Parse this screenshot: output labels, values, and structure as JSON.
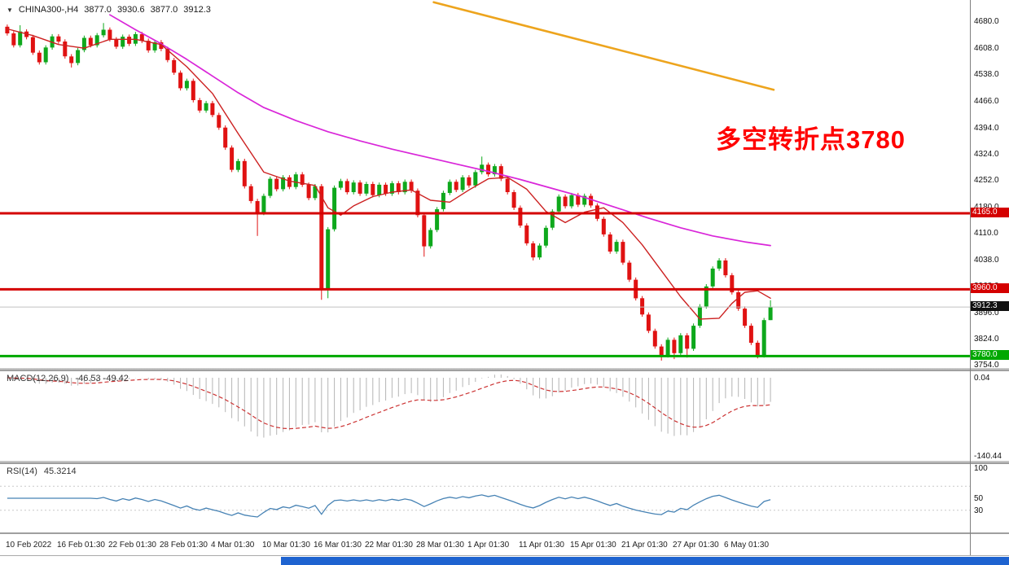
{
  "symbol_readout": {
    "dropdown_icon": "▼",
    "symbol_tf": "CHINA300-,H4",
    "open": "3877.0",
    "high": "3930.6",
    "low": "3877.0",
    "close": "3912.3"
  },
  "annotation": {
    "text": "多空转折点3780",
    "color": "#ff0000"
  },
  "time_axis": {
    "tick_indices": [
      0,
      8,
      16,
      24,
      32,
      40,
      48,
      56,
      64,
      72,
      80,
      88,
      96,
      104,
      112
    ],
    "labels": [
      "10 Feb 2022",
      "16 Feb 01:30",
      "22 Feb 01:30",
      "28 Feb 01:30",
      "4 Mar 01:30",
      "10 Mar 01:30",
      "16 Mar 01:30",
      "22 Mar 01:30",
      "28 Mar 01:30",
      "1 Apr 01:30",
      "11 Apr 01:30",
      "15 Apr 01:30",
      "21 Apr 01:30",
      "27 Apr 01:30",
      "6 May 01:30"
    ]
  },
  "chart_data": {
    "type": "candlestick",
    "symbol": "CHINA300-",
    "timeframe": "H4",
    "bull_color": "#0ea81c",
    "bear_color": "#e01212",
    "price_axis": {
      "view_max": 4740,
      "view_min": 3748,
      "ticks": [
        4680.0,
        4608.0,
        4538.0,
        4466.0,
        4394.0,
        4324.0,
        4252.0,
        4180.0,
        4110.0,
        4038.0,
        3968.0,
        3896.0,
        3824.0,
        3754.0
      ]
    },
    "hlines": [
      {
        "price": 4165.0,
        "color": "#d40000",
        "width": 3,
        "label": "4165.0"
      },
      {
        "price": 3960.0,
        "color": "#d40000",
        "width": 3,
        "label": "3960.0"
      },
      {
        "price": 3780.0,
        "color": "#00a800",
        "width": 3,
        "label": "3780.0"
      },
      {
        "price": 3912.3,
        "color": "#c0c0c0",
        "width": 1,
        "label": "3912.3",
        "label_bg": "#111111"
      }
    ],
    "candles": [
      [
        4668,
        4674,
        4644,
        4650
      ],
      [
        4650,
        4656,
        4612,
        4618
      ],
      [
        4618,
        4672,
        4612,
        4655
      ],
      [
        4655,
        4661,
        4634,
        4640
      ],
      [
        4640,
        4646,
        4592,
        4598
      ],
      [
        4598,
        4604,
        4566,
        4572
      ],
      [
        4572,
        4618,
        4566,
        4612
      ],
      [
        4612,
        4648,
        4606,
        4642
      ],
      [
        4642,
        4648,
        4622,
        4628
      ],
      [
        4628,
        4634,
        4582,
        4588
      ],
      [
        4588,
        4594,
        4558,
        4570
      ],
      [
        4570,
        4611,
        4564,
        4605
      ],
      [
        4605,
        4644,
        4599,
        4638
      ],
      [
        4638,
        4644,
        4612,
        4618
      ],
      [
        4618,
        4651,
        4612,
        4645
      ],
      [
        4645,
        4678,
        4639,
        4660
      ],
      [
        4660,
        4666,
        4628,
        4634
      ],
      [
        4634,
        4640,
        4608,
        4614
      ],
      [
        4614,
        4647,
        4608,
        4641
      ],
      [
        4641,
        4647,
        4616,
        4622
      ],
      [
        4622,
        4654,
        4616,
        4648
      ],
      [
        4648,
        4654,
        4624,
        4630
      ],
      [
        4630,
        4636,
        4598,
        4604
      ],
      [
        4604,
        4632,
        4598,
        4626
      ],
      [
        4626,
        4632,
        4602,
        4608
      ],
      [
        4608,
        4614,
        4572,
        4578
      ],
      [
        4578,
        4584,
        4538,
        4544
      ],
      [
        4544,
        4550,
        4496,
        4502
      ],
      [
        4502,
        4528,
        4496,
        4522
      ],
      [
        4522,
        4528,
        4464,
        4470
      ],
      [
        4470,
        4476,
        4436,
        4442
      ],
      [
        4442,
        4468,
        4436,
        4462
      ],
      [
        4462,
        4468,
        4424,
        4430
      ],
      [
        4430,
        4436,
        4390,
        4396
      ],
      [
        4396,
        4402,
        4336,
        4342
      ],
      [
        4342,
        4348,
        4276,
        4282
      ],
      [
        4282,
        4312,
        4276,
        4306
      ],
      [
        4306,
        4312,
        4232,
        4238
      ],
      [
        4238,
        4244,
        4192,
        4198
      ],
      [
        4198,
        4204,
        4104,
        4166
      ],
      [
        4166,
        4218,
        4160,
        4212
      ],
      [
        4212,
        4264,
        4206,
        4258
      ],
      [
        4258,
        4264,
        4224,
        4230
      ],
      [
        4230,
        4268,
        4224,
        4262
      ],
      [
        4262,
        4268,
        4230,
        4236
      ],
      [
        4236,
        4276,
        4230,
        4270
      ],
      [
        4270,
        4276,
        4236,
        4242
      ],
      [
        4242,
        4248,
        4200,
        4206
      ],
      [
        4206,
        4244,
        4200,
        4238
      ],
      [
        4238,
        4244,
        3932,
        3962
      ],
      [
        3962,
        4128,
        3936,
        4122
      ],
      [
        4122,
        4240,
        4116,
        4234
      ],
      [
        4234,
        4258,
        4228,
        4252
      ],
      [
        4252,
        4258,
        4216,
        4222
      ],
      [
        4222,
        4254,
        4216,
        4248
      ],
      [
        4248,
        4254,
        4212,
        4218
      ],
      [
        4218,
        4250,
        4212,
        4244
      ],
      [
        4244,
        4250,
        4208,
        4214
      ],
      [
        4214,
        4248,
        4208,
        4242
      ],
      [
        4242,
        4248,
        4212,
        4218
      ],
      [
        4218,
        4252,
        4212,
        4246
      ],
      [
        4246,
        4252,
        4216,
        4222
      ],
      [
        4222,
        4256,
        4216,
        4250
      ],
      [
        4250,
        4256,
        4220,
        4226
      ],
      [
        4226,
        4232,
        4154,
        4160
      ],
      [
        4160,
        4166,
        4048,
        4076
      ],
      [
        4076,
        4126,
        4070,
        4120
      ],
      [
        4120,
        4182,
        4114,
        4176
      ],
      [
        4176,
        4226,
        4170,
        4220
      ],
      [
        4220,
        4256,
        4214,
        4250
      ],
      [
        4250,
        4256,
        4222,
        4228
      ],
      [
        4228,
        4268,
        4222,
        4262
      ],
      [
        4262,
        4268,
        4234,
        4240
      ],
      [
        4240,
        4282,
        4234,
        4276
      ],
      [
        4276,
        4318,
        4270,
        4296
      ],
      [
        4296,
        4302,
        4264,
        4270
      ],
      [
        4270,
        4298,
        4264,
        4292
      ],
      [
        4292,
        4298,
        4252,
        4258
      ],
      [
        4258,
        4264,
        4216,
        4222
      ],
      [
        4222,
        4228,
        4174,
        4180
      ],
      [
        4180,
        4186,
        4126,
        4132
      ],
      [
        4132,
        4138,
        4078,
        4084
      ],
      [
        4084,
        4090,
        4038,
        4046
      ],
      [
        4046,
        4084,
        4040,
        4078
      ],
      [
        4078,
        4132,
        4072,
        4126
      ],
      [
        4126,
        4176,
        4120,
        4170
      ],
      [
        4170,
        4216,
        4164,
        4210
      ],
      [
        4210,
        4216,
        4178,
        4184
      ],
      [
        4184,
        4220,
        4178,
        4214
      ],
      [
        4214,
        4220,
        4182,
        4188
      ],
      [
        4188,
        4218,
        4182,
        4212
      ],
      [
        4212,
        4218,
        4180,
        4186
      ],
      [
        4186,
        4192,
        4144,
        4150
      ],
      [
        4150,
        4156,
        4102,
        4108
      ],
      [
        4108,
        4114,
        4056,
        4062
      ],
      [
        4062,
        4094,
        4056,
        4088
      ],
      [
        4088,
        4094,
        4026,
        4032
      ],
      [
        4032,
        4038,
        3980,
        3986
      ],
      [
        3986,
        3992,
        3930,
        3936
      ],
      [
        3936,
        3942,
        3886,
        3892
      ],
      [
        3892,
        3898,
        3842,
        3848
      ],
      [
        3848,
        3854,
        3800,
        3806
      ],
      [
        3806,
        3812,
        3768,
        3782
      ],
      [
        3782,
        3830,
        3776,
        3824
      ],
      [
        3824,
        3830,
        3772,
        3788
      ],
      [
        3788,
        3842,
        3782,
        3836
      ],
      [
        3836,
        3842,
        3776,
        3800
      ],
      [
        3800,
        3868,
        3794,
        3862
      ],
      [
        3862,
        3920,
        3856,
        3914
      ],
      [
        3914,
        3974,
        3908,
        3968
      ],
      [
        3968,
        4022,
        3962,
        4016
      ],
      [
        4016,
        4044,
        4010,
        4038
      ],
      [
        4038,
        4044,
        3992,
        3998
      ],
      [
        3998,
        4004,
        3946,
        3952
      ],
      [
        3952,
        3958,
        3902,
        3908
      ],
      [
        3908,
        3914,
        3856,
        3862
      ],
      [
        3862,
        3868,
        3810,
        3816
      ],
      [
        3816,
        3822,
        3774,
        3782
      ],
      [
        3782,
        3883,
        3776,
        3877
      ],
      [
        3877,
        3930.6,
        3877,
        3912.3
      ]
    ],
    "overlays": {
      "ma_slow": {
        "color": "#d926d9",
        "points": [
          [
            16,
            4700
          ],
          [
            20,
            4660
          ],
          [
            24,
            4622
          ],
          [
            28,
            4580
          ],
          [
            32,
            4535
          ],
          [
            36,
            4490
          ],
          [
            40,
            4450
          ],
          [
            45,
            4415
          ],
          [
            50,
            4385
          ],
          [
            55,
            4360
          ],
          [
            60,
            4338
          ],
          [
            65,
            4318
          ],
          [
            70,
            4298
          ],
          [
            75,
            4278
          ],
          [
            80,
            4256
          ],
          [
            85,
            4232
          ],
          [
            90,
            4208
          ],
          [
            95,
            4180
          ],
          [
            100,
            4152
          ],
          [
            105,
            4126
          ],
          [
            110,
            4104
          ],
          [
            115,
            4088
          ],
          [
            119,
            4078
          ]
        ]
      },
      "ma_fast": {
        "color": "#cc2020",
        "points": [
          [
            0,
            4662
          ],
          [
            4,
            4644
          ],
          [
            8,
            4620
          ],
          [
            12,
            4610
          ],
          [
            16,
            4634
          ],
          [
            20,
            4634
          ],
          [
            24,
            4620
          ],
          [
            28,
            4560
          ],
          [
            32,
            4488
          ],
          [
            36,
            4380
          ],
          [
            40,
            4276
          ],
          [
            44,
            4252
          ],
          [
            48,
            4240
          ],
          [
            50,
            4180
          ],
          [
            52,
            4160
          ],
          [
            54,
            4185
          ],
          [
            57,
            4210
          ],
          [
            60,
            4222
          ],
          [
            63,
            4228
          ],
          [
            66,
            4200
          ],
          [
            69,
            4195
          ],
          [
            72,
            4228
          ],
          [
            75,
            4258
          ],
          [
            78,
            4262
          ],
          [
            81,
            4230
          ],
          [
            84,
            4170
          ],
          [
            87,
            4140
          ],
          [
            90,
            4168
          ],
          [
            93,
            4180
          ],
          [
            96,
            4140
          ],
          [
            99,
            4080
          ],
          [
            102,
            4010
          ],
          [
            105,
            3940
          ],
          [
            108,
            3880
          ],
          [
            111,
            3882
          ],
          [
            113,
            3922
          ],
          [
            115,
            3952
          ],
          [
            117,
            3956
          ],
          [
            119,
            3936
          ]
        ]
      },
      "trendline": {
        "color": "#eda41d",
        "points": [
          [
            66.5,
            4734
          ],
          [
            119.5,
            4498
          ]
        ]
      }
    },
    "macd": {
      "label": "MACD(12,26,9)",
      "values_text": "-46.53 -49.42",
      "params": [
        12,
        26,
        9
      ],
      "axis_top": "0.04",
      "axis_bottom": "-140.44",
      "hist_color": "#b4b4b4",
      "signal_color": "#cc3333"
    },
    "rsi": {
      "label": "RSI(14)",
      "value_text": "45.3214",
      "period": 14,
      "color": "#4682b4",
      "levels": [
        70,
        30
      ],
      "axis_labels": [
        {
          "v": 100,
          "t": "100"
        },
        {
          "v": 50,
          "t": "50"
        },
        {
          "v": 30,
          "t": "30"
        }
      ]
    }
  }
}
